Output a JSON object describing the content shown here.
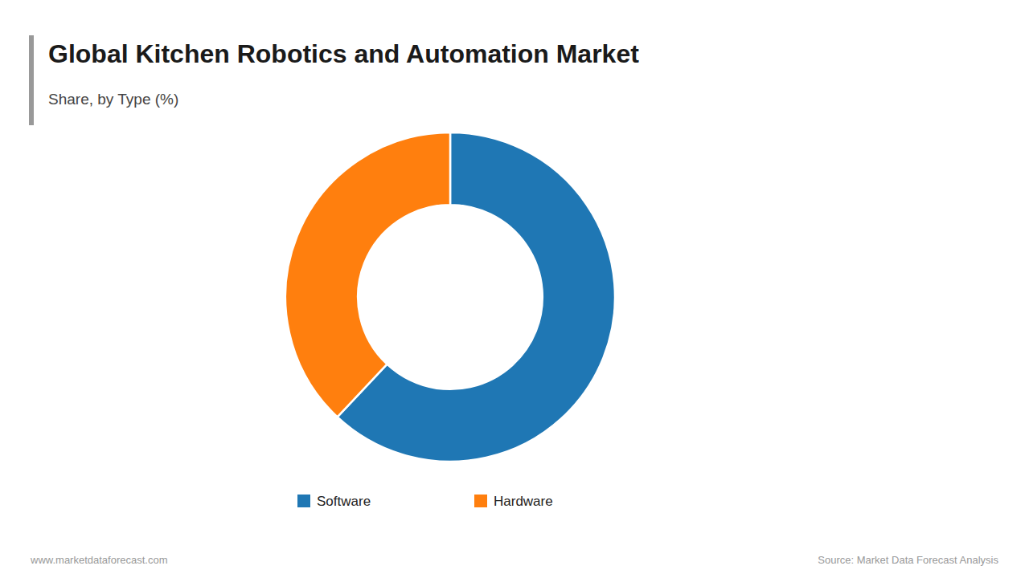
{
  "chart_data": {
    "type": "donut",
    "title": "Global Kitchen Robotics and Automation Market",
    "subtitle": "Share, by Type (%)",
    "categories": [
      "Software",
      "Hardware"
    ],
    "values": [
      62,
      38
    ],
    "legend": "bottom",
    "annotations": [
      "www.marketdataforecast.com",
      "Source: Market Data Forecast Analysis"
    ]
  }
}
